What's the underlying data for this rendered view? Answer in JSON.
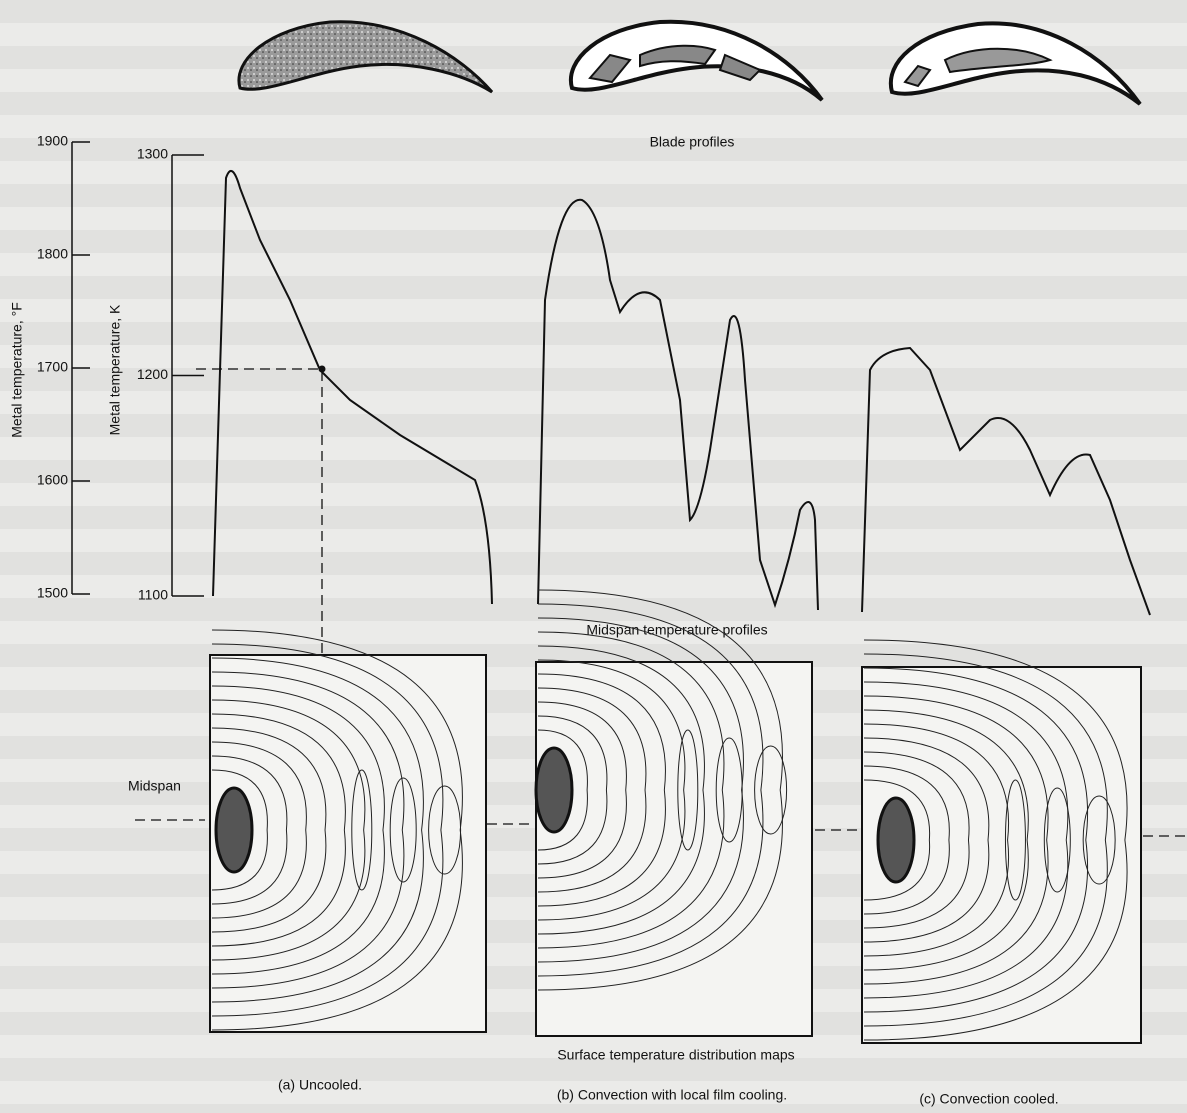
{
  "figure": {
    "blade_profiles_label": "Blade profiles",
    "axes": {
      "fahrenheit": {
        "label": "Metal temperature, °F",
        "ticks": [
          1900,
          1800,
          1700,
          1600,
          1500
        ]
      },
      "kelvin": {
        "label": "Metal temperature, K",
        "ticks": [
          1300,
          1200,
          1100
        ]
      }
    },
    "midspan_profiles_label": "Midspan temperature profiles",
    "midspan_label": "Midspan",
    "maps_label": "Surface temperature distribution maps",
    "panels": [
      {
        "caption": "(a) Uncooled."
      },
      {
        "caption": "(b) Convection with local film cooling."
      },
      {
        "caption": "(c) Convection cooled."
      }
    ]
  }
}
